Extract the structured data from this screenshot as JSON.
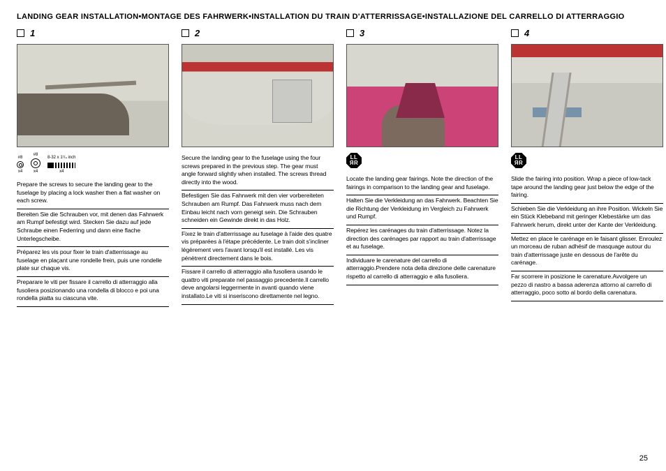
{
  "title": "LANDING GEAR INSTALLATION•MONTAGE DES FAHRWERK•INSTALLATION DU TRAIN D'ATTERRISSAGE•INSTALLAZIONE DEL CARRELLO DI ATTERRAGGIO",
  "page_number": "25",
  "lr_icon_text": "LL\nRR",
  "hardware": {
    "washer1_top": "#8",
    "washer1_bot": "x4",
    "washer2_top": "#8",
    "washer2_bot": "x4",
    "screw_top": "8-32 x 1¹/₄ inch",
    "screw_bot": "x4"
  },
  "steps": [
    {
      "num": "1",
      "has_hardware_icons": true,
      "has_lr_icon": false,
      "paras": [
        "Prepare the screws to secure the landing gear to the fuselage by placing a lock washer then a flat washer on each screw.",
        "Bereiten Sie die Schrauben vor, mit denen das Fahrwerk am Rumpf befestigt wird. Stecken Sie dazu auf jede Schraube einen Federring und dann eine flache Unterlegscheibe.",
        "Préparez les vis pour fixer le train d'atterrissage au fuselage en plaçant une rondelle frein, puis une rondelle plate sur chaque vis.",
        "Preparare le viti per fissare il carrello di atterraggio alla fusoliera posizionando una rondella di blocco e poi una rondella piatta su ciascuna vite."
      ]
    },
    {
      "num": "2",
      "has_hardware_icons": false,
      "has_lr_icon": false,
      "paras": [
        "Secure the landing gear to the fuselage using the four screws prepared in the previous step. The gear must angle forward slightly when installed. The screws thread directly into the wood.",
        "Befestigen Sie das Fahrwerk mit den vier vorbereiteten Schrauben am Rumpf. Das Fahrwerk muss nach dem Einbau leicht nach vorn geneigt sein. Die Schrauben schneiden ein Gewinde direkt in das Holz.",
        "Fixez le train d'atterrissage au fuselage à l'aide des quatre vis préparées à l'étape précédente. Le train doit s'incliner légèrement vers l'avant lorsqu'il est installé. Les vis pénètrent directement dans le bois.",
        "Fissare il carrello di atterraggio alla fusoliera usando le quattro viti preparate nel passaggio precedente.Il carrello deve angolarsi leggermente in avanti quando viene installato.Le viti si inseriscono direttamente nel legno."
      ]
    },
    {
      "num": "3",
      "has_hardware_icons": false,
      "has_lr_icon": true,
      "paras": [
        "Locate the landing gear fairings. Note the direction of the fairings in comparison to the landing gear and fuselage.",
        "Halten Sie die Verkleidung an das Fahrwerk. Beachten Sie die Richtung der Verkleidung im Vergleich zu Fahrwerk und Rumpf.",
        "Repérez les carénages du train d'atterrissage. Notez la direction des carénages par rapport au train d'atterrissage et au fuselage.",
        "Individuare le carenature del carrello di atterraggio.Prendere nota della direzione delle carenature rispetto al carrello di atterraggio e alla fusoliera."
      ]
    },
    {
      "num": "4",
      "has_hardware_icons": false,
      "has_lr_icon": true,
      "paras": [
        "Slide the fairing into position. Wrap a piece of low-tack tape around the landing gear just below the edge of the fairing.",
        "Schieben Sie die Verkleidung an ihre Position.  Wickeln Sie ein Stück Klebeband mit geringer Klebestärke um das Fahrwerk herum, direkt unter der Kante der Verkleidung.",
        "Mettez en place le carénage en le faisant glisser. Enroulez un morceau de ruban adhésif de masquage autour du train d'atterrissage juste en dessous de l'arête du carénage.",
        "Far scorrere in posizione le carenature.Avvolgere un pezzo di nastro a bassa aderenza attorno al carrello di atterraggio, poco sotto al bordo della carenatura."
      ]
    }
  ]
}
